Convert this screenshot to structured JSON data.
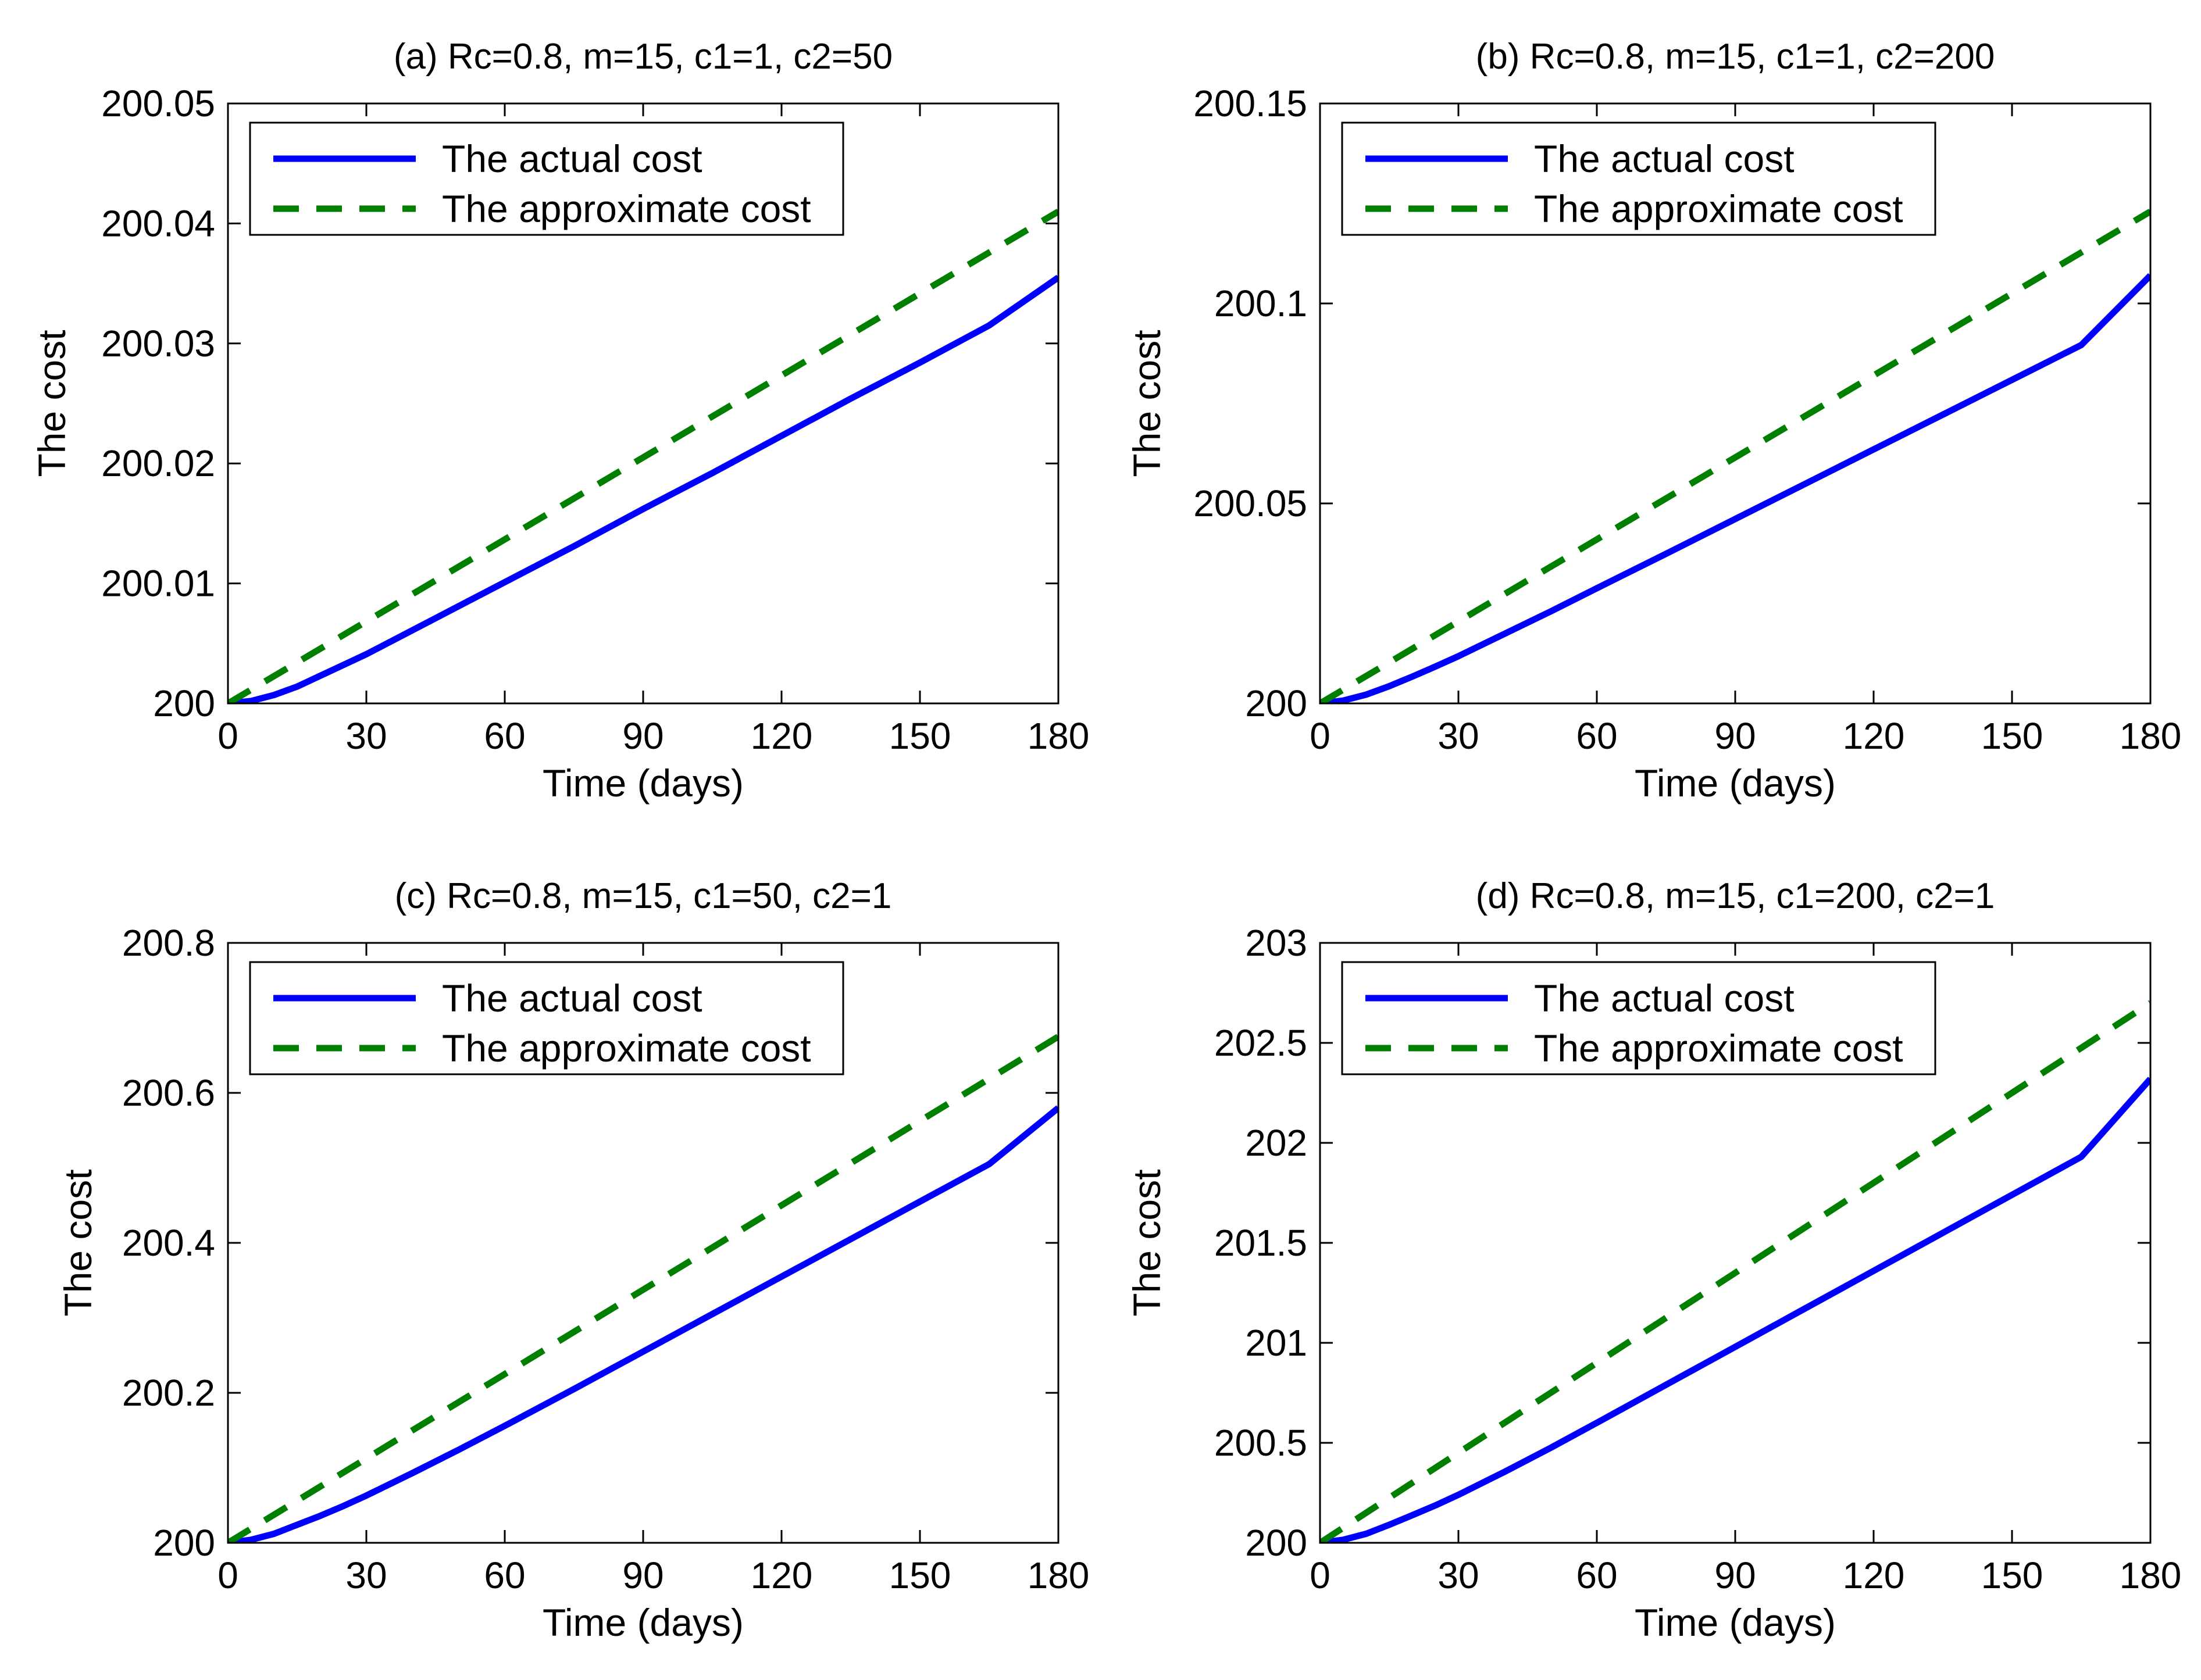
{
  "chart_data": [
    {
      "type": "line",
      "title": "(a) Rc=0.8, m=15, c1=1, c2=50",
      "xlabel": "Time (days)",
      "ylabel": "The cost",
      "xlim": [
        0,
        180
      ],
      "ylim": [
        200,
        200.05
      ],
      "x_ticks": [
        0,
        30,
        60,
        90,
        120,
        150,
        180
      ],
      "y_ticks": [
        200,
        200.01,
        200.02,
        200.03,
        200.04,
        200.05
      ],
      "y_tick_labels": [
        "200",
        "200.01",
        "200.02",
        "200.03",
        "200.04",
        "200.05"
      ],
      "legend_position": "top-left",
      "series": [
        {
          "name": "The actual cost",
          "color": "#0000ff",
          "style": "solid",
          "x": [
            0,
            5,
            10,
            15,
            20,
            25,
            30,
            40,
            50,
            60,
            75,
            90,
            105,
            120,
            135,
            150,
            165,
            180
          ],
          "y": [
            200.0,
            200.0002,
            200.0007,
            200.0014,
            200.0023,
            200.0032,
            200.0041,
            200.0061,
            200.0081,
            200.0101,
            200.0131,
            200.0162,
            200.0192,
            200.0223,
            200.0254,
            200.0284,
            200.0315,
            200.0355
          ]
        },
        {
          "name": "The approximate cost",
          "color": "#007f00",
          "style": "dashed",
          "x": [
            0,
            180
          ],
          "y": [
            200.0,
            200.041
          ]
        }
      ]
    },
    {
      "type": "line",
      "title": "(b) Rc=0.8, m=15, c1=1, c2=200",
      "xlabel": "Time (days)",
      "ylabel": "The cost",
      "xlim": [
        0,
        180
      ],
      "ylim": [
        200,
        200.15
      ],
      "x_ticks": [
        0,
        30,
        60,
        90,
        120,
        150,
        180
      ],
      "y_ticks": [
        200,
        200.05,
        200.1,
        200.15
      ],
      "y_tick_labels": [
        "200",
        "200.05",
        "200.1",
        "200.15"
      ],
      "legend_position": "top-left",
      "series": [
        {
          "name": "The actual cost",
          "color": "#0000ff",
          "style": "solid",
          "x": [
            0,
            5,
            10,
            15,
            20,
            25,
            30,
            40,
            50,
            60,
            75,
            90,
            105,
            120,
            135,
            150,
            165,
            180
          ],
          "y": [
            200.0,
            200.0007,
            200.0022,
            200.0043,
            200.0067,
            200.0092,
            200.0118,
            200.0174,
            200.023,
            200.0288,
            200.0374,
            200.0461,
            200.0548,
            200.0635,
            200.0722,
            200.0809,
            200.0896,
            200.107
          ]
        },
        {
          "name": "The approximate cost",
          "color": "#007f00",
          "style": "dashed",
          "x": [
            0,
            180
          ],
          "y": [
            200.0,
            200.123
          ]
        }
      ]
    },
    {
      "type": "line",
      "title": "(c) Rc=0.8, m=15, c1=50, c2=1",
      "xlabel": "Time (days)",
      "ylabel": "The cost",
      "xlim": [
        0,
        180
      ],
      "ylim": [
        200,
        200.8
      ],
      "x_ticks": [
        0,
        30,
        60,
        90,
        120,
        150,
        180
      ],
      "y_ticks": [
        200,
        200.2,
        200.4,
        200.6,
        200.8
      ],
      "y_tick_labels": [
        "200",
        "200.2",
        "200.4",
        "200.6",
        "200.8"
      ],
      "legend_position": "top-left",
      "series": [
        {
          "name": "The actual cost",
          "color": "#0000ff",
          "style": "solid",
          "x": [
            0,
            5,
            10,
            15,
            20,
            25,
            30,
            40,
            50,
            60,
            75,
            90,
            105,
            120,
            135,
            150,
            165,
            180
          ],
          "y": [
            200.0,
            200.004,
            200.012,
            200.024,
            200.036,
            200.049,
            200.063,
            200.093,
            200.124,
            200.156,
            200.205,
            200.255,
            200.305,
            200.355,
            200.405,
            200.455,
            200.505,
            200.58
          ]
        },
        {
          "name": "The approximate cost",
          "color": "#007f00",
          "style": "dashed",
          "x": [
            0,
            180
          ],
          "y": [
            200.0,
            200.675
          ]
        }
      ]
    },
    {
      "type": "line",
      "title": "(d) Rc=0.8, m=15, c1=200, c2=1",
      "xlabel": "Time (days)",
      "ylabel": "The cost",
      "xlim": [
        0,
        180
      ],
      "ylim": [
        200,
        203
      ],
      "x_ticks": [
        0,
        30,
        60,
        90,
        120,
        150,
        180
      ],
      "y_ticks": [
        200,
        200.5,
        201,
        201.5,
        202,
        202.5,
        203
      ],
      "y_tick_labels": [
        "200",
        "200.5",
        "201",
        "201.5",
        "202",
        "202.5",
        "203"
      ],
      "legend_position": "top-left",
      "series": [
        {
          "name": "The actual cost",
          "color": "#0000ff",
          "style": "solid",
          "x": [
            0,
            5,
            10,
            15,
            20,
            25,
            30,
            40,
            50,
            60,
            75,
            90,
            105,
            120,
            135,
            150,
            165,
            180
          ],
          "y": [
            200.0,
            200.015,
            200.045,
            200.09,
            200.138,
            200.187,
            200.24,
            200.355,
            200.475,
            200.6,
            200.79,
            200.98,
            201.17,
            201.36,
            201.55,
            201.74,
            201.93,
            202.32
          ]
        },
        {
          "name": "The approximate cost",
          "color": "#007f00",
          "style": "dashed",
          "x": [
            0,
            180
          ],
          "y": [
            200.0,
            202.7
          ]
        }
      ]
    }
  ]
}
